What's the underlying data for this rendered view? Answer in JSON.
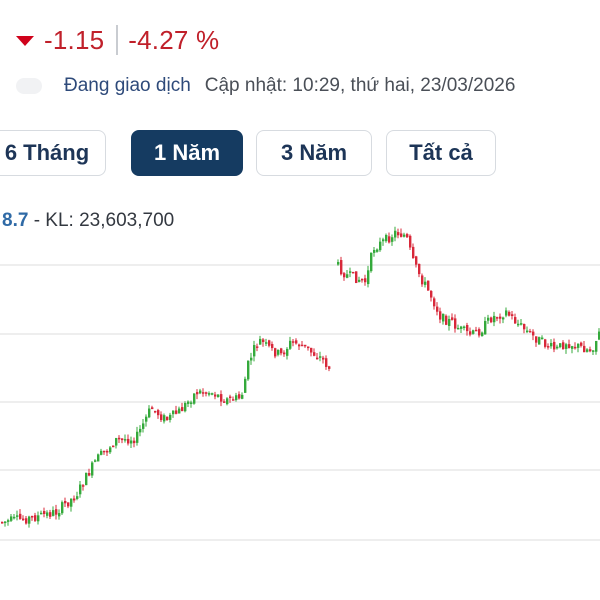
{
  "price_change": {
    "value": "-1.15",
    "percent": "-4.27 %",
    "color": "#c0202a"
  },
  "status": {
    "trading": "Đang giao dịch",
    "updated": "Cập nhật: 10:29, thứ hai, 23/03/2026"
  },
  "tabs": [
    {
      "label": "6 Tháng",
      "active": false
    },
    {
      "label": "1 Năm",
      "active": true
    },
    {
      "label": "3 Năm",
      "active": false
    },
    {
      "label": "Tất cả",
      "active": false
    }
  ],
  "info": {
    "last_value": "8.7",
    "volume_text": " - KL: 23,603,700"
  },
  "colors": {
    "up": "#34a93b",
    "down": "#d8283a",
    "grid": "#dcdcdc",
    "accent": "#153b61"
  },
  "chart_data": {
    "type": "candlestick",
    "segments": [
      {
        "name": "phase-1",
        "color_bias": "mixed",
        "points": [
          [
            0,
            522
          ],
          [
            30,
            518
          ],
          [
            55,
            512
          ],
          [
            75,
            495
          ],
          [
            95,
            460
          ],
          [
            115,
            440
          ],
          [
            135,
            438
          ],
          [
            150,
            408
          ],
          [
            165,
            420
          ],
          [
            180,
            410
          ],
          [
            195,
            392
          ],
          [
            210,
            392
          ],
          [
            225,
            400
          ],
          [
            240,
            398
          ],
          [
            248,
            360
          ],
          [
            258,
            340
          ],
          [
            270,
            350
          ],
          [
            280,
            355
          ],
          [
            290,
            342
          ],
          [
            300,
            345
          ],
          [
            310,
            352
          ],
          [
            320,
            358
          ],
          [
            330,
            370
          ]
        ]
      },
      {
        "name": "phase-2",
        "color_bias": "mixed",
        "points": [
          [
            336,
            265
          ],
          [
            345,
            275
          ],
          [
            355,
            278
          ],
          [
            365,
            282
          ],
          [
            372,
            248
          ],
          [
            385,
            240
          ],
          [
            395,
            232
          ],
          [
            405,
            236
          ],
          [
            412,
            262
          ],
          [
            420,
            278
          ],
          [
            430,
            296
          ],
          [
            440,
            318
          ],
          [
            450,
            322
          ],
          [
            460,
            330
          ],
          [
            470,
            335
          ],
          [
            480,
            330
          ],
          [
            490,
            318
          ],
          [
            505,
            312
          ],
          [
            515,
            322
          ],
          [
            530,
            335
          ],
          [
            545,
            345
          ],
          [
            555,
            350
          ],
          [
            565,
            342
          ],
          [
            575,
            346
          ],
          [
            590,
            350
          ],
          [
            600,
            330
          ]
        ]
      }
    ],
    "gridlines": [
      265,
      334,
      402,
      470,
      540
    ],
    "grid": true
  }
}
